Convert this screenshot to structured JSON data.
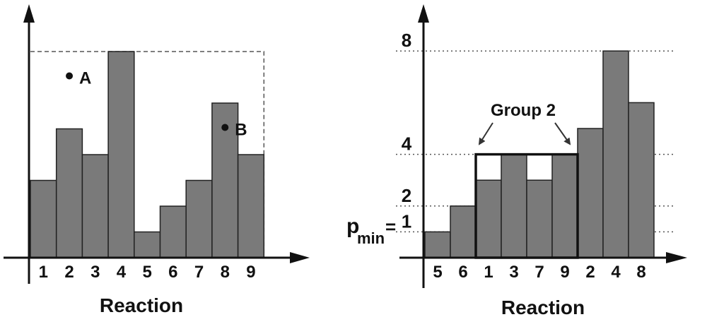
{
  "chart_data": [
    {
      "type": "bar",
      "categories": [
        "1",
        "2",
        "3",
        "4",
        "5",
        "6",
        "7",
        "8",
        "9"
      ],
      "values": [
        3,
        5,
        4,
        8,
        1,
        2,
        3,
        6,
        4
      ],
      "xlabel": "Reaction",
      "ylim": [
        0,
        8
      ],
      "bounding_box_value": 8,
      "points": [
        {
          "label": "A",
          "x": "2",
          "y": 7
        },
        {
          "label": "B",
          "x": "8",
          "y": 5
        }
      ]
    },
    {
      "type": "bar",
      "categories": [
        "5",
        "6",
        "1",
        "3",
        "7",
        "9",
        "2",
        "4",
        "8"
      ],
      "values": [
        1,
        2,
        3,
        4,
        3,
        4,
        5,
        8,
        6
      ],
      "xlabel": "Reaction",
      "ylim": [
        0,
        8
      ],
      "ytick_labels": [
        {
          "value": 8,
          "text": "8"
        },
        {
          "value": 4,
          "text": "4"
        },
        {
          "value": 2,
          "text": "2"
        },
        {
          "value": 1,
          "text": "1"
        }
      ],
      "pmin_label": "p",
      "pmin_sub": "min",
      "pmin_eq": "=",
      "group_label": "Group 2",
      "group_categories": [
        "1",
        "3",
        "7",
        "9"
      ],
      "group_level": 4,
      "reference_levels": [
        8,
        4,
        2,
        1
      ]
    }
  ]
}
